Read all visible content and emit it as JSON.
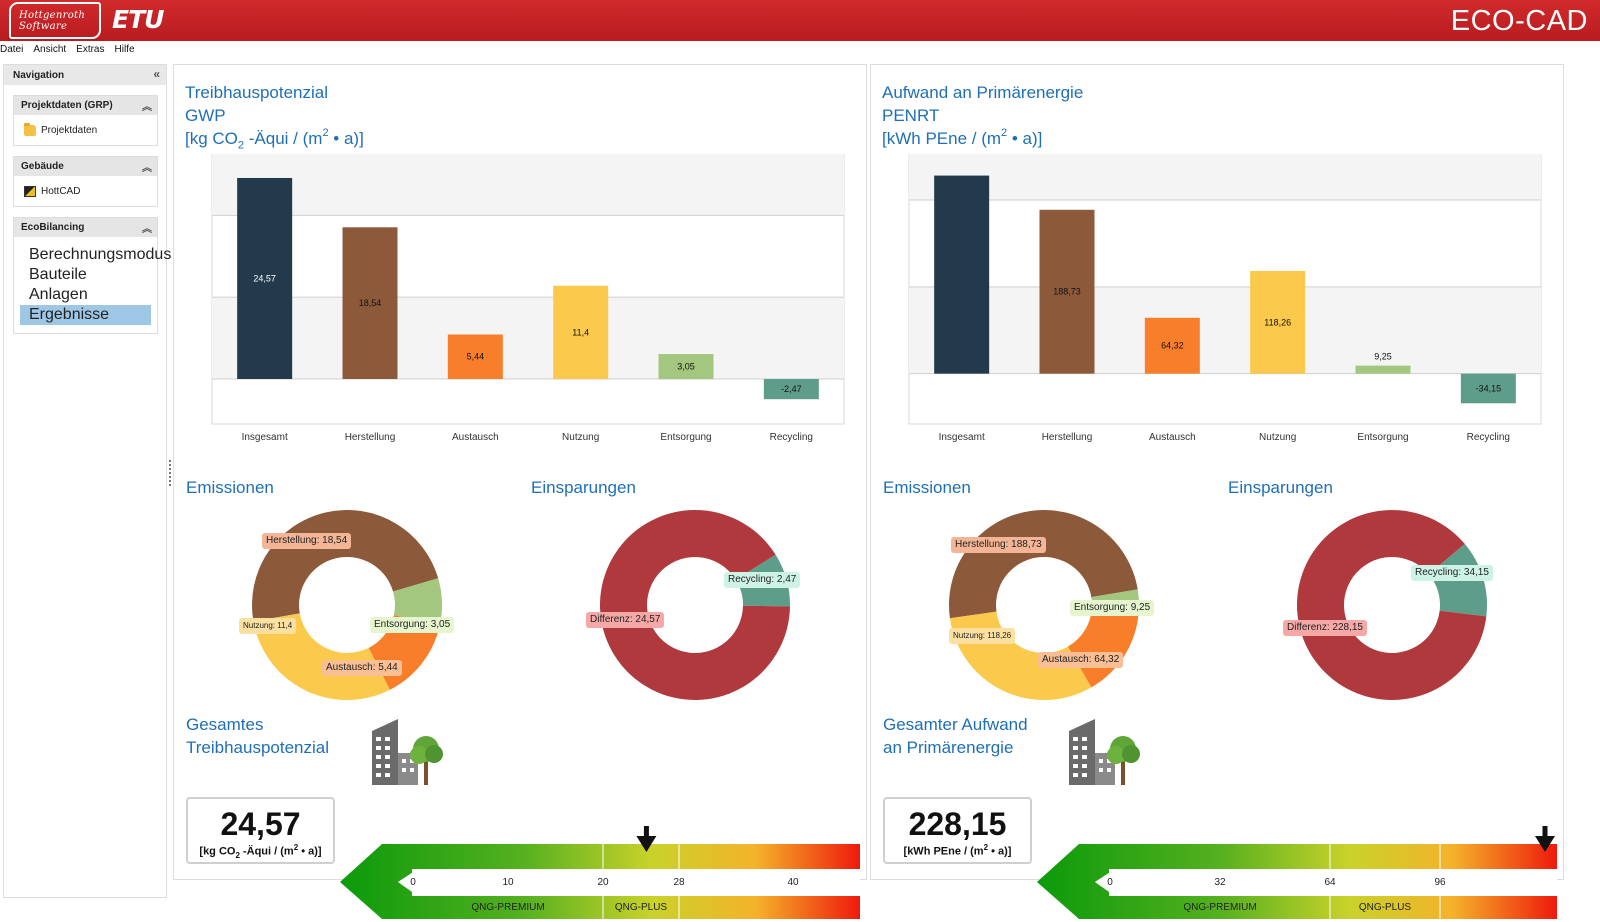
{
  "header": {
    "logo_line1": "Hottgenroth",
    "logo_line2": "Software",
    "logo_etu": "ETU",
    "app_title": "ECO-CAD"
  },
  "menu": [
    "Datei",
    "Ansicht",
    "Extras",
    "Hilfe"
  ],
  "sidebar": {
    "title": "Navigation",
    "collapse_icon": "double-chevron-left",
    "groups": [
      {
        "title": "Projektdaten (GRP)",
        "items": [
          {
            "label": "Projektdaten",
            "icon": "folder-icon"
          }
        ]
      },
      {
        "title": "Gebäude",
        "items": [
          {
            "label": "HottCAD",
            "icon": "hottcad-icon"
          }
        ]
      },
      {
        "title": "EcoBilancing",
        "items": [
          {
            "label": "Berechnungsmodus"
          },
          {
            "label": "Bauteile"
          },
          {
            "label": "Anlagen"
          },
          {
            "label": "Ergebnisse",
            "active": true
          }
        ]
      }
    ]
  },
  "colors": {
    "header_red": "#c32024",
    "title_blue": "#1f6fb8",
    "insgesamt": "#233a4c",
    "herstellung": "#8c5a3a",
    "austausch": "#f97e2a",
    "nutzung": "#fbc94b",
    "entsorgung": "#a3c77f",
    "recycling": "#5f9d8b",
    "differenz": "#b0393e",
    "active_nav": "#9ec7e6"
  },
  "gwp": {
    "title_l1": "Treibhauspotenzial",
    "title_l2": "GWP",
    "unit_html_a": "[kg CO",
    "unit_sub": "2",
    "unit_html_b": " -Äqui / (m",
    "unit_sup": "2",
    "unit_html_c": " • a)]",
    "emissions_title": "Emissionen",
    "savings_title": "Einsparungen",
    "emissions_tags": {
      "herstellung": "Herstellung: 18,54",
      "nutzung": "Nutzung: 11,4",
      "entsorgung": "Entsorgung: 3,05",
      "austausch": "Austausch: 5,44"
    },
    "savings_tags": {
      "recycling": "Recycling: 2,47",
      "differenz": "Differenz: 24,57"
    },
    "total_title_l1": "Gesamtes",
    "total_title_l2": "Treibhauspotenzial",
    "total_value": "24,57",
    "total_unit_a": "[kg CO",
    "total_unit_sub": "2",
    "total_unit_b": " -Äqui / (m",
    "total_unit_sup": "2",
    "total_unit_c": " • a)]",
    "scale_ticks": [
      "0",
      "10",
      "20",
      "28",
      "40"
    ],
    "scale_labels": [
      "QNG-PREMIUM",
      "QNG-PLUS"
    ],
    "scale_marker": 24.57
  },
  "penrt": {
    "title_l1": "Aufwand an Primärenergie",
    "title_l2": "PENRT",
    "unit_html_a": "[kWh PEne / (m",
    "unit_sup": "2",
    "unit_html_c": " • a)]",
    "emissions_title": "Emissionen",
    "savings_title": "Einsparungen",
    "emissions_tags": {
      "herstellung": "Herstellung: 188,73",
      "nutzung": "Nutzung: 118,26",
      "entsorgung": "Entsorgung: 9,25",
      "austausch": "Austausch: 64,32"
    },
    "savings_tags": {
      "recycling": "Recycling: 34,15",
      "differenz": "Differenz: 228,15"
    },
    "total_title_l1": "Gesamter Aufwand",
    "total_title_l2": "an Primärenergie",
    "total_value": "228,15",
    "total_unit_a": "[kWh PEne / (m",
    "total_unit_sup": "2",
    "total_unit_c": " • a)]",
    "scale_ticks": [
      "0",
      "32",
      "64",
      "96"
    ],
    "scale_labels": [
      "QNG-PREMIUM",
      "QNG-PLUS"
    ],
    "scale_marker": 228.15
  },
  "chart_data": [
    {
      "type": "bar",
      "title": "Treibhauspotenzial GWP",
      "ylabel": "[kg CO2 -Äqui / (m² • a)]",
      "categories": [
        "Insgesamt",
        "Herstellung",
        "Austausch",
        "Nutzung",
        "Entsorgung",
        "Recycling"
      ],
      "values": [
        24.57,
        18.54,
        5.44,
        11.4,
        3.05,
        -2.47
      ],
      "value_labels": [
        "24,57",
        "18,54",
        "5,44",
        "11,4",
        "3,05",
        "-2,47"
      ],
      "yticks": [
        0,
        10,
        20
      ],
      "ylim": [
        -5.5,
        27.5
      ],
      "grid": true
    },
    {
      "type": "bar",
      "title": "Aufwand an Primärenergie PENRT",
      "ylabel": "[kWh PEne / (m² • a)]",
      "categories": [
        "Insgesamt",
        "Herstellung",
        "Austausch",
        "Nutzung",
        "Entsorgung",
        "Recycling"
      ],
      "values": [
        228.15,
        188.73,
        64.32,
        118.26,
        9.25,
        -34.15
      ],
      "value_labels": [
        "",
        "188,73",
        "64,32",
        "118,26",
        "9,25",
        "-34,15"
      ],
      "yticks": [
        0,
        100,
        200
      ],
      "ylim": [
        -58,
        253
      ],
      "grid": true
    },
    {
      "type": "pie",
      "title": "Emissionen",
      "labels": [
        "Herstellung",
        "Entsorgung",
        "Austausch",
        "Nutzung"
      ],
      "values": [
        18.54,
        3.05,
        5.44,
        11.4
      ]
    },
    {
      "type": "pie",
      "title": "Einsparungen",
      "labels": [
        "Recycling",
        "Differenz"
      ],
      "values": [
        2.47,
        24.57
      ]
    },
    {
      "type": "pie",
      "title": "Emissionen",
      "labels": [
        "Herstellung",
        "Entsorgung",
        "Austausch",
        "Nutzung"
      ],
      "values": [
        188.73,
        9.25,
        64.32,
        118.26
      ]
    },
    {
      "type": "pie",
      "title": "Einsparungen",
      "labels": [
        "Recycling",
        "Differenz"
      ],
      "values": [
        34.15,
        228.15
      ]
    }
  ]
}
